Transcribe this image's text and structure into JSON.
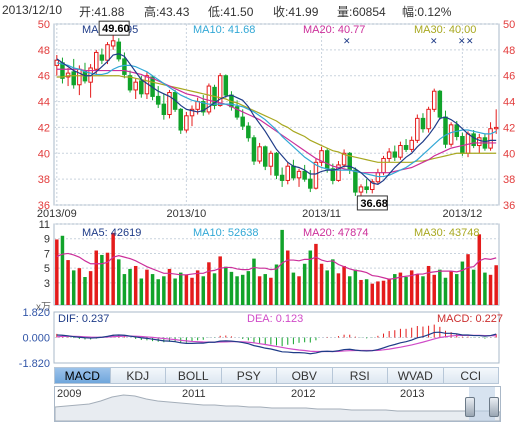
{
  "header": {
    "date": "2013/12/10",
    "open": "开:41.88",
    "high": "高:43.43",
    "low": "低:41.50",
    "close": "收:41.99",
    "volume": "量:60854",
    "change": "幅:0.12%"
  },
  "colors": {
    "up": "#e41b1b",
    "down": "#11a32a",
    "ma5": "#1f3c88",
    "ma10": "#32a8d6",
    "ma20": "#cc2f9a",
    "ma30": "#a8a820",
    "grid": "#c9d3de"
  },
  "price_panel": {
    "ma_labels": [
      "MA5: 40.95",
      "MA10: 41.68",
      "MA20: 40.77",
      "MA30: 40.00"
    ],
    "high_marker": "49.60",
    "low_marker": "36.68",
    "x_labels": [
      "2013/09",
      "2013/10",
      "2013/11",
      "2013/12"
    ]
  },
  "volume_panel": {
    "ma_labels": [
      "MA5: 42619",
      "MA10: 52638",
      "MA20: 47874",
      "MA30: 43748"
    ],
    "unit_label": "x万"
  },
  "macd_panel": {
    "dif_label": "DIF: 0.237",
    "dea_label": "DEA: 0.123",
    "macd_label": "MACD: 0.227",
    "y_ticks": [
      "1.820",
      "0.000",
      "-1.820"
    ]
  },
  "tabs": [
    "MACD",
    "KDJ",
    "BOLL",
    "PSY",
    "OBV",
    "RSI",
    "WVAD",
    "CCI"
  ],
  "active_tab": "MACD",
  "navigator": {
    "years": [
      "2009",
      "2011",
      "2012",
      "2013"
    ]
  },
  "chart_data": [
    {
      "type": "candlestick",
      "x": [
        "2013/09",
        "2013/10",
        "2013/11",
        "2013/12"
      ],
      "ylim": [
        36,
        50
      ],
      "yticks": [
        36,
        38,
        40,
        42,
        44,
        46,
        48,
        50
      ],
      "candles": [
        {
          "o": 46.8,
          "h": 47.6,
          "l": 46.0,
          "c": 47.2
        },
        {
          "o": 47.0,
          "h": 47.4,
          "l": 45.4,
          "c": 45.8
        },
        {
          "o": 45.9,
          "h": 46.6,
          "l": 45.2,
          "c": 46.2
        },
        {
          "o": 46.3,
          "h": 47.3,
          "l": 45.0,
          "c": 45.3
        },
        {
          "o": 45.3,
          "h": 46.8,
          "l": 44.5,
          "c": 46.5
        },
        {
          "o": 46.4,
          "h": 47.0,
          "l": 45.4,
          "c": 45.6
        },
        {
          "o": 45.5,
          "h": 46.9,
          "l": 44.3,
          "c": 46.6
        },
        {
          "o": 46.5,
          "h": 48.0,
          "l": 46.1,
          "c": 47.8
        },
        {
          "o": 47.6,
          "h": 48.1,
          "l": 46.9,
          "c": 47.2
        },
        {
          "o": 47.2,
          "h": 48.6,
          "l": 46.9,
          "c": 48.4
        },
        {
          "o": 48.3,
          "h": 49.6,
          "l": 48.0,
          "c": 48.7
        },
        {
          "o": 48.6,
          "h": 48.9,
          "l": 47.1,
          "c": 47.3
        },
        {
          "o": 47.3,
          "h": 47.8,
          "l": 45.8,
          "c": 46.1
        },
        {
          "o": 46.0,
          "h": 46.4,
          "l": 44.7,
          "c": 44.9
        },
        {
          "o": 44.9,
          "h": 45.8,
          "l": 44.2,
          "c": 45.5
        },
        {
          "o": 45.6,
          "h": 46.0,
          "l": 44.3,
          "c": 44.6
        },
        {
          "o": 44.6,
          "h": 46.3,
          "l": 44.2,
          "c": 46.0
        },
        {
          "o": 45.9,
          "h": 46.0,
          "l": 44.1,
          "c": 44.4
        },
        {
          "o": 44.4,
          "h": 45.2,
          "l": 43.5,
          "c": 43.8
        },
        {
          "o": 43.8,
          "h": 44.6,
          "l": 42.6,
          "c": 43.0
        },
        {
          "o": 43.0,
          "h": 44.9,
          "l": 42.7,
          "c": 44.7
        },
        {
          "o": 44.7,
          "h": 44.9,
          "l": 43.2,
          "c": 43.4
        },
        {
          "o": 43.4,
          "h": 43.5,
          "l": 41.5,
          "c": 41.8
        },
        {
          "o": 41.8,
          "h": 43.2,
          "l": 41.6,
          "c": 42.9
        },
        {
          "o": 42.9,
          "h": 43.7,
          "l": 42.1,
          "c": 43.4
        },
        {
          "o": 43.4,
          "h": 44.3,
          "l": 43.0,
          "c": 44.0
        },
        {
          "o": 44.0,
          "h": 44.5,
          "l": 42.9,
          "c": 43.2
        },
        {
          "o": 43.2,
          "h": 45.4,
          "l": 43.0,
          "c": 45.2
        },
        {
          "o": 45.1,
          "h": 45.3,
          "l": 43.4,
          "c": 43.7
        },
        {
          "o": 43.7,
          "h": 46.2,
          "l": 43.6,
          "c": 46.0
        },
        {
          "o": 46.0,
          "h": 46.1,
          "l": 44.3,
          "c": 44.5
        },
        {
          "o": 44.5,
          "h": 44.8,
          "l": 43.3,
          "c": 43.6
        },
        {
          "o": 43.6,
          "h": 44.1,
          "l": 42.6,
          "c": 42.8
        },
        {
          "o": 42.8,
          "h": 43.4,
          "l": 41.8,
          "c": 42.1
        },
        {
          "o": 42.1,
          "h": 42.4,
          "l": 40.9,
          "c": 41.2
        },
        {
          "o": 41.2,
          "h": 41.4,
          "l": 39.1,
          "c": 39.4
        },
        {
          "o": 39.4,
          "h": 40.8,
          "l": 39.2,
          "c": 40.5
        },
        {
          "o": 40.5,
          "h": 40.6,
          "l": 38.7,
          "c": 39.0
        },
        {
          "o": 39.0,
          "h": 40.2,
          "l": 38.3,
          "c": 40.0
        },
        {
          "o": 40.0,
          "h": 40.1,
          "l": 38.0,
          "c": 38.3
        },
        {
          "o": 38.3,
          "h": 38.9,
          "l": 37.4,
          "c": 37.9
        },
        {
          "o": 37.9,
          "h": 39.3,
          "l": 37.6,
          "c": 39.0
        },
        {
          "o": 39.0,
          "h": 39.5,
          "l": 37.9,
          "c": 38.1
        },
        {
          "o": 38.1,
          "h": 38.8,
          "l": 37.4,
          "c": 38.6
        },
        {
          "o": 38.6,
          "h": 39.1,
          "l": 37.8,
          "c": 38.0
        },
        {
          "o": 38.0,
          "h": 38.7,
          "l": 37.0,
          "c": 37.3
        },
        {
          "o": 37.3,
          "h": 39.6,
          "l": 37.2,
          "c": 39.3
        },
        {
          "o": 39.3,
          "h": 40.5,
          "l": 39.0,
          "c": 40.2
        },
        {
          "o": 40.2,
          "h": 40.4,
          "l": 38.5,
          "c": 38.8
        },
        {
          "o": 38.8,
          "h": 39.2,
          "l": 37.6,
          "c": 37.9
        },
        {
          "o": 37.9,
          "h": 39.4,
          "l": 37.8,
          "c": 39.1
        },
        {
          "o": 39.1,
          "h": 40.3,
          "l": 38.9,
          "c": 40.0
        },
        {
          "o": 40.0,
          "h": 40.1,
          "l": 38.4,
          "c": 38.7
        },
        {
          "o": 38.7,
          "h": 38.9,
          "l": 36.7,
          "c": 37.0
        },
        {
          "o": 37.0,
          "h": 37.6,
          "l": 36.7,
          "c": 37.4
        },
        {
          "o": 37.4,
          "h": 38.0,
          "l": 36.9,
          "c": 37.2
        },
        {
          "o": 37.2,
          "h": 38.0,
          "l": 36.9,
          "c": 37.8
        },
        {
          "o": 37.8,
          "h": 38.8,
          "l": 37.6,
          "c": 38.5
        },
        {
          "o": 38.5,
          "h": 39.8,
          "l": 38.3,
          "c": 39.6
        },
        {
          "o": 39.6,
          "h": 40.4,
          "l": 39.3,
          "c": 40.1
        },
        {
          "o": 40.1,
          "h": 40.6,
          "l": 39.4,
          "c": 39.7
        },
        {
          "o": 39.7,
          "h": 40.9,
          "l": 39.5,
          "c": 40.6
        },
        {
          "o": 40.6,
          "h": 41.1,
          "l": 40.1,
          "c": 40.3
        },
        {
          "o": 40.3,
          "h": 41.3,
          "l": 40.1,
          "c": 41.0
        },
        {
          "o": 41.0,
          "h": 43.0,
          "l": 40.8,
          "c": 42.7
        },
        {
          "o": 42.7,
          "h": 43.1,
          "l": 41.6,
          "c": 41.9
        },
        {
          "o": 41.9,
          "h": 43.6,
          "l": 41.6,
          "c": 43.4
        },
        {
          "o": 43.4,
          "h": 45.0,
          "l": 43.2,
          "c": 44.8
        },
        {
          "o": 44.8,
          "h": 44.9,
          "l": 42.6,
          "c": 42.8
        },
        {
          "o": 42.8,
          "h": 43.3,
          "l": 40.4,
          "c": 40.7
        },
        {
          "o": 40.7,
          "h": 42.4,
          "l": 40.5,
          "c": 42.2
        },
        {
          "o": 42.2,
          "h": 42.5,
          "l": 41.0,
          "c": 41.3
        },
        {
          "o": 41.3,
          "h": 41.6,
          "l": 39.8,
          "c": 40.0
        },
        {
          "o": 40.0,
          "h": 41.7,
          "l": 39.7,
          "c": 41.5
        },
        {
          "o": 41.5,
          "h": 41.8,
          "l": 40.4,
          "c": 40.6
        },
        {
          "o": 40.6,
          "h": 41.5,
          "l": 40.0,
          "c": 41.2
        },
        {
          "o": 41.2,
          "h": 41.5,
          "l": 40.2,
          "c": 40.4
        },
        {
          "o": 40.4,
          "h": 42.4,
          "l": 40.2,
          "c": 41.9
        },
        {
          "o": 41.9,
          "h": 43.4,
          "l": 41.5,
          "c": 42.0
        }
      ],
      "ma5": [
        47.3,
        47.0,
        46.7,
        46.4,
        46.2,
        46.0,
        46.0,
        46.3,
        46.7,
        47.1,
        47.6,
        47.7,
        47.5,
        46.9,
        46.3,
        45.7,
        45.4,
        45.1,
        44.8,
        44.6,
        44.4,
        44.1,
        43.7,
        43.4,
        43.3,
        43.2,
        43.3,
        43.6,
        43.9,
        44.2,
        44.4,
        44.5,
        44.3,
        44.1,
        43.6,
        42.9,
        42.3,
        41.7,
        41.0,
        40.3,
        39.8,
        39.3,
        39.0,
        38.9,
        38.7,
        38.4,
        38.4,
        38.6,
        38.7,
        38.7,
        38.8,
        39.0,
        39.0,
        38.8,
        38.5,
        38.1,
        37.7,
        37.6,
        37.9,
        38.4,
        38.9,
        39.3,
        39.7,
        40.0,
        40.5,
        40.9,
        41.4,
        42.0,
        42.7,
        42.8,
        42.6,
        42.3,
        41.9,
        41.5,
        41.2,
        41.0,
        40.9,
        41.0,
        41.0
      ],
      "ma10": [
        47.0,
        46.9,
        46.8,
        46.6,
        46.5,
        46.3,
        46.2,
        46.1,
        46.1,
        46.2,
        46.5,
        46.7,
        46.8,
        46.8,
        46.7,
        46.5,
        46.3,
        46.0,
        45.7,
        45.4,
        45.1,
        44.8,
        44.5,
        44.3,
        44.1,
        44.0,
        43.9,
        43.8,
        43.8,
        43.8,
        43.8,
        43.8,
        43.7,
        43.6,
        43.4,
        43.2,
        42.9,
        42.6,
        42.2,
        41.8,
        41.3,
        40.9,
        40.5,
        40.1,
        39.7,
        39.4,
        39.1,
        38.9,
        38.8,
        38.7,
        38.7,
        38.7,
        38.7,
        38.6,
        38.5,
        38.4,
        38.3,
        38.2,
        38.2,
        38.3,
        38.5,
        38.7,
        38.9,
        39.2,
        39.5,
        39.9,
        40.3,
        40.7,
        41.1,
        41.4,
        41.6,
        41.7,
        41.8,
        41.8,
        41.7,
        41.6,
        41.5,
        41.5,
        41.7
      ],
      "ma20": [
        46.5,
        46.5,
        46.5,
        46.5,
        46.5,
        46.4,
        46.4,
        46.4,
        46.4,
        46.4,
        46.4,
        46.4,
        46.4,
        46.3,
        46.2,
        46.1,
        45.9,
        45.8,
        45.6,
        45.4,
        45.2,
        45.0,
        44.8,
        44.6,
        44.5,
        44.4,
        44.2,
        44.1,
        44.0,
        43.9,
        43.8,
        43.6,
        43.4,
        43.2,
        43.0,
        42.8,
        42.6,
        42.3,
        42.0,
        41.7,
        41.4,
        41.1,
        40.8,
        40.5,
        40.2,
        39.9,
        39.6,
        39.4,
        39.2,
        39.0,
        38.9,
        38.8,
        38.7,
        38.6,
        38.5,
        38.5,
        38.5,
        38.5,
        38.5,
        38.5,
        38.6,
        38.7,
        38.8,
        38.9,
        39.1,
        39.3,
        39.5,
        39.8,
        40.0,
        40.2,
        40.4,
        40.5,
        40.6,
        40.7,
        40.8,
        40.8,
        40.8,
        40.8,
        40.8
      ],
      "ma30": [
        45.9,
        45.9,
        46.0,
        46.0,
        46.0,
        46.0,
        46.0,
        46.0,
        46.0,
        46.0,
        46.0,
        46.0,
        45.9,
        45.9,
        45.8,
        45.7,
        45.6,
        45.5,
        45.4,
        45.3,
        45.2,
        45.1,
        45.0,
        44.9,
        44.8,
        44.7,
        44.6,
        44.5,
        44.4,
        44.3,
        44.2,
        44.0,
        43.9,
        43.7,
        43.5,
        43.3,
        43.1,
        42.9,
        42.7,
        42.5,
        42.2,
        42.0,
        41.7,
        41.5,
        41.3,
        41.0,
        40.8,
        40.6,
        40.4,
        40.2,
        40.1,
        39.9,
        39.8,
        39.7,
        39.6,
        39.5,
        39.4,
        39.3,
        39.3,
        39.3,
        39.3,
        39.3,
        39.3,
        39.3,
        39.4,
        39.4,
        39.5,
        39.6,
        39.7,
        39.8,
        39.9,
        40.0,
        40.0,
        40.0,
        40.0,
        40.0,
        40.0,
        40.0,
        40.0
      ]
    },
    {
      "type": "bar",
      "yticks": [
        3,
        5,
        7,
        9,
        11
      ],
      "ylim": [
        0,
        11
      ],
      "volume": [
        8.9,
        9.4,
        6.1,
        4.7,
        5.0,
        3.8,
        4.6,
        7.4,
        6.8,
        7.1,
        9.8,
        6.2,
        4.2,
        4.9,
        5.3,
        3.6,
        4.8,
        4.2,
        3.5,
        3.9,
        4.9,
        3.6,
        4.4,
        4.1,
        3.7,
        4.7,
        3.9,
        5.8,
        4.3,
        6.6,
        5.2,
        4.5,
        3.9,
        4.1,
        4.6,
        6.3,
        3.9,
        4.2,
        3.7,
        5.5,
        10.2,
        7.4,
        4.4,
        3.9,
        5.6,
        7.4,
        8.3,
        5.6,
        4.7,
        6.2,
        4.3,
        5.3,
        3.9,
        4.8,
        3.4,
        3.5,
        2.9,
        3.2,
        3.3,
        3.6,
        4.2,
        4.4,
        3.8,
        4.7,
        4.2,
        3.9,
        5.3,
        4.1,
        4.8,
        3.7,
        4.6,
        4.2,
        5.9,
        6.9,
        4.8,
        9.6,
        4.4,
        4.1,
        5.4
      ],
      "ma_vol": [
        6.6,
        6.9,
        7.0,
        6.8,
        6.5,
        6.0,
        5.6,
        5.6,
        5.6,
        5.8,
        6.5,
        6.7,
        6.5,
        6.3,
        6.0,
        5.6,
        5.2,
        4.9,
        4.6,
        4.3,
        4.3,
        4.2,
        4.1,
        4.1,
        4.2,
        4.3,
        4.3,
        4.6,
        4.7,
        5.0,
        5.1,
        5.1,
        4.9,
        4.8,
        4.8,
        5.1,
        5.0,
        5.0,
        4.8,
        4.9,
        5.7,
        6.1,
        6.1,
        6.0,
        6.2,
        6.2,
        6.5,
        6.1,
        5.9,
        6.0,
        5.5,
        5.2,
        4.9,
        4.7,
        4.6,
        4.4,
        4.0,
        3.9,
        3.7,
        3.5,
        3.6,
        3.8,
        3.9,
        4.0,
        4.2,
        4.2,
        4.4,
        4.5,
        4.6,
        4.6,
        4.6,
        4.5,
        4.7,
        5.1,
        5.2,
        6.0,
        6.3,
        6.2,
        6.4
      ]
    },
    {
      "type": "line",
      "ylim": [
        -1.82,
        1.82
      ],
      "dif": [
        0.18,
        0.16,
        0.12,
        0.06,
        0.02,
        -0.02,
        -0.04,
        -0.02,
        0.02,
        0.08,
        0.16,
        0.18,
        0.16,
        0.1,
        0.04,
        -0.02,
        -0.06,
        -0.12,
        -0.18,
        -0.24,
        -0.26,
        -0.3,
        -0.38,
        -0.42,
        -0.42,
        -0.4,
        -0.4,
        -0.34,
        -0.34,
        -0.26,
        -0.24,
        -0.26,
        -0.3,
        -0.36,
        -0.44,
        -0.58,
        -0.66,
        -0.76,
        -0.82,
        -0.92,
        -1.02,
        -1.04,
        -1.08,
        -1.08,
        -1.1,
        -1.16,
        -1.1,
        -1.0,
        -0.98,
        -1.0,
        -0.94,
        -0.86,
        -0.84,
        -0.9,
        -0.94,
        -0.96,
        -0.94,
        -0.86,
        -0.74,
        -0.6,
        -0.5,
        -0.38,
        -0.3,
        -0.18,
        -0.02,
        0.06,
        0.2,
        0.36,
        0.38,
        0.3,
        0.3,
        0.26,
        0.18,
        0.18,
        0.14,
        0.14,
        0.1,
        0.14,
        0.24
      ],
      "dea": [
        0.05,
        0.08,
        0.09,
        0.08,
        0.07,
        0.05,
        0.03,
        0.02,
        0.02,
        0.03,
        0.06,
        0.08,
        0.1,
        0.1,
        0.09,
        0.07,
        0.04,
        0.01,
        -0.03,
        -0.07,
        -0.11,
        -0.15,
        -0.2,
        -0.24,
        -0.28,
        -0.3,
        -0.32,
        -0.33,
        -0.33,
        -0.32,
        -0.31,
        -0.3,
        -0.3,
        -0.31,
        -0.34,
        -0.38,
        -0.44,
        -0.5,
        -0.57,
        -0.64,
        -0.71,
        -0.78,
        -0.84,
        -0.89,
        -0.93,
        -0.98,
        -1.0,
        -1.0,
        -1.0,
        -1.0,
        -0.99,
        -0.96,
        -0.94,
        -0.93,
        -0.93,
        -0.93,
        -0.93,
        -0.92,
        -0.88,
        -0.83,
        -0.76,
        -0.69,
        -0.61,
        -0.53,
        -0.43,
        -0.33,
        -0.22,
        -0.1,
        0.0,
        0.06,
        0.11,
        0.14,
        0.15,
        0.15,
        0.15,
        0.15,
        0.14,
        0.13,
        0.12
      ]
    }
  ]
}
